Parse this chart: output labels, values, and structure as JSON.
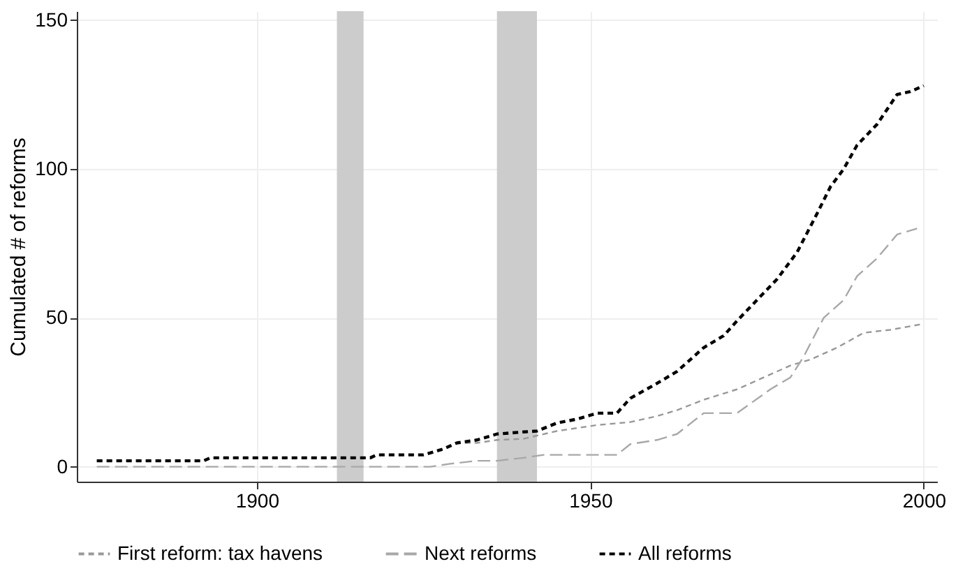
{
  "chart_data": {
    "type": "line",
    "ylabel": "Cumulated # of reforms",
    "xlim": [
      1873,
      2002
    ],
    "ylim": [
      -5,
      153
    ],
    "xticks": [
      1900,
      1950,
      2000
    ],
    "yticks": [
      0,
      50,
      100,
      150
    ],
    "grid": true,
    "legend": "bottom",
    "bands": [
      {
        "axis": "x",
        "from": 1912,
        "to": 1916,
        "color": "#cccccc"
      },
      {
        "axis": "x",
        "from": 1936,
        "to": 1942,
        "color": "#cccccc"
      }
    ],
    "series": [
      {
        "name": "First reform: tax havens",
        "color": "#999999",
        "line_style": "dashed",
        "x": [
          1876,
          1892,
          1893,
          1917,
          1918,
          1925,
          1928,
          1930,
          1933,
          1936,
          1940,
          1945,
          1951,
          1956,
          1960,
          1963,
          1967,
          1972,
          1977,
          1980,
          1983,
          1987,
          1991,
          1995,
          2000
        ],
        "values": [
          2,
          2,
          3,
          3,
          4,
          4,
          6,
          8,
          8,
          9,
          9.4,
          12,
          14,
          15,
          17,
          19,
          22.5,
          26,
          31,
          34,
          36,
          40,
          45,
          46,
          48
        ]
      },
      {
        "name": "Next reforms",
        "color": "#a8a8a8",
        "line_style": "dashed",
        "x": [
          1876,
          1926,
          1929,
          1933,
          1936,
          1940,
          1943,
          1954,
          1956,
          1960,
          1963,
          1967,
          1972,
          1977,
          1980,
          1982,
          1985,
          1988,
          1990,
          1993,
          1996,
          1999
        ],
        "values": [
          0,
          0,
          1,
          2,
          2,
          3,
          4,
          4,
          7.6,
          9,
          11,
          18,
          18,
          26,
          30,
          37,
          50,
          56,
          64,
          70,
          78,
          80
        ]
      },
      {
        "name": "All reforms",
        "color": "#000000",
        "line_style": "dashed",
        "x": [
          1876,
          1892,
          1893,
          1917,
          1918,
          1925,
          1928,
          1930,
          1933,
          1936,
          1940,
          1942,
          1945,
          1948,
          1951,
          1954,
          1956,
          1960,
          1963,
          1967,
          1970,
          1972,
          1975,
          1978,
          1981,
          1984,
          1986,
          1988,
          1990,
          1993,
          1996,
          1998,
          2000
        ],
        "values": [
          2,
          2,
          3,
          3,
          4,
          4,
          6,
          8,
          9,
          11,
          11.7,
          12,
          14.7,
          16,
          18,
          18,
          23,
          28,
          32,
          40,
          44,
          49,
          56,
          63,
          72,
          85,
          94,
          100,
          108,
          115,
          125,
          126,
          128
        ]
      }
    ]
  }
}
